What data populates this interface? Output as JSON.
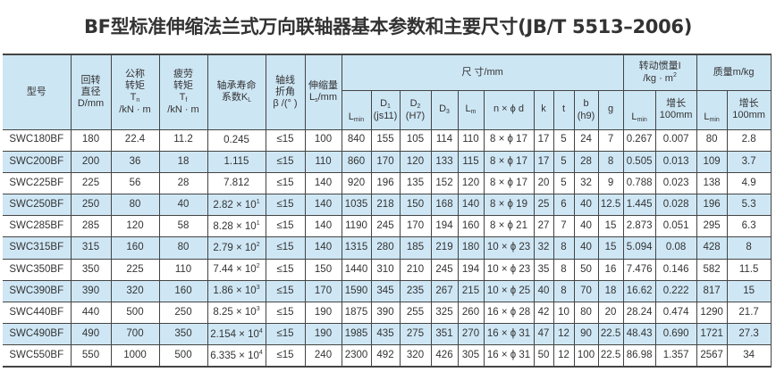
{
  "title": "BF型标准伸缩法兰式万向联轴器基本参数和主要尺寸(JB/T 5513–2006)",
  "header": {
    "model": "型号",
    "d": [
      "回转",
      "直径",
      "D/mm"
    ],
    "tn": [
      "公称",
      "转矩",
      "T",
      "n",
      "/kN · m"
    ],
    "tf": [
      "疲劳",
      "转矩",
      "T",
      "f",
      "/kN · m"
    ],
    "kl": [
      "轴承寿命",
      "系数K",
      "L"
    ],
    "beta": [
      "轴线",
      "折角",
      "β /(°  )"
    ],
    "ls": [
      "伸缩量",
      "L",
      "s",
      "/mm"
    ],
    "dims": "尺  寸/mm",
    "dim_cols": [
      [
        "L",
        "min",
        ""
      ],
      [
        "D",
        "1",
        "(js11)"
      ],
      [
        "D",
        "2",
        "(H7)"
      ],
      [
        "D",
        "3",
        ""
      ],
      [
        "L",
        "m",
        ""
      ],
      [
        "n × ϕ d",
        "",
        ""
      ],
      [
        "k",
        "",
        ""
      ],
      [
        "t",
        "",
        ""
      ],
      [
        "b",
        "",
        "(h9)"
      ],
      [
        "g",
        "",
        ""
      ]
    ],
    "inertia": [
      "转动惯量I",
      "/kg · m",
      "2"
    ],
    "inertia_cols": [
      [
        "L",
        "min"
      ],
      [
        "增长",
        "100mm"
      ]
    ],
    "mass": "质量m/kg",
    "mass_cols": [
      [
        "L",
        "min"
      ],
      [
        "增长",
        "100mm"
      ]
    ]
  },
  "rows": [
    {
      "model": "SWC180BF",
      "d": "180",
      "tn": "22.4",
      "tf": "11.2",
      "kl": "0.245",
      "kl_exp": "",
      "beta": "≤15",
      "ls": "100",
      "lmin": "840",
      "d1": "155",
      "d2": "105",
      "d3": "114",
      "lm": "110",
      "nd": "8 × ϕ 17",
      "k": "17",
      "t": "5",
      "b": "24",
      "g": "7",
      "i_lmin": "0.267",
      "i_100": "0.007",
      "m_lmin": "80",
      "m_100": "2.8"
    },
    {
      "model": "SWC200BF",
      "d": "200",
      "tn": "36",
      "tf": "18",
      "kl": "1.115",
      "kl_exp": "",
      "beta": "≤15",
      "ls": "110",
      "lmin": "860",
      "d1": "170",
      "d2": "120",
      "d3": "133",
      "lm": "115",
      "nd": "8 × ϕ 17",
      "k": "17",
      "t": "5",
      "b": "28",
      "g": "8",
      "i_lmin": "0.505",
      "i_100": "0.013",
      "m_lmin": "109",
      "m_100": "3.7"
    },
    {
      "model": "SWC225BF",
      "d": "225",
      "tn": "56",
      "tf": "28",
      "kl": "7.812",
      "kl_exp": "",
      "beta": "≤15",
      "ls": "140",
      "lmin": "920",
      "d1": "196",
      "d2": "135",
      "d3": "152",
      "lm": "120",
      "nd": "8 × ϕ 17",
      "k": "20",
      "t": "5",
      "b": "32",
      "g": "9",
      "i_lmin": "0.788",
      "i_100": "0.023",
      "m_lmin": "138",
      "m_100": "4.9"
    },
    {
      "model": "SWC250BF",
      "d": "250",
      "tn": "80",
      "tf": "40",
      "kl": "2.82 × 10",
      "kl_exp": "1",
      "beta": "≤15",
      "ls": "140",
      "lmin": "1035",
      "d1": "218",
      "d2": "150",
      "d3": "168",
      "lm": "140",
      "nd": "8 × ϕ 19",
      "k": "25",
      "t": "6",
      "b": "40",
      "g": "12.5",
      "i_lmin": "1.445",
      "i_100": "0.028",
      "m_lmin": "196",
      "m_100": "5.3"
    },
    {
      "model": "SWC285BF",
      "d": "285",
      "tn": "120",
      "tf": "58",
      "kl": "8.28 × 10",
      "kl_exp": "1",
      "beta": "≤15",
      "ls": "140",
      "lmin": "1190",
      "d1": "245",
      "d2": "170",
      "d3": "194",
      "lm": "160",
      "nd": "8 × ϕ 21",
      "k": "27",
      "t": "7",
      "b": "40",
      "g": "15",
      "i_lmin": "2.873",
      "i_100": "0.051",
      "m_lmin": "295",
      "m_100": "6.3"
    },
    {
      "model": "SWC315BF",
      "d": "315",
      "tn": "160",
      "tf": "80",
      "kl": "2.79 × 10",
      "kl_exp": "2",
      "beta": "≤15",
      "ls": "140",
      "lmin": "1315",
      "d1": "280",
      "d2": "185",
      "d3": "219",
      "lm": "180",
      "nd": "10 × ϕ 23",
      "k": "32",
      "t": "8",
      "b": "40",
      "g": "15",
      "i_lmin": "5.094",
      "i_100": "0.08",
      "m_lmin": "428",
      "m_100": "8"
    },
    {
      "model": "SWC350BF",
      "d": "350",
      "tn": "225",
      "tf": "110",
      "kl": "7.44 × 10",
      "kl_exp": "2",
      "beta": "≤15",
      "ls": "150",
      "lmin": "1440",
      "d1": "310",
      "d2": "210",
      "d3": "245",
      "lm": "194",
      "nd": "10 × ϕ 23",
      "k": "35",
      "t": "8",
      "b": "50",
      "g": "16",
      "i_lmin": "7.476",
      "i_100": "0.146",
      "m_lmin": "582",
      "m_100": "11.5"
    },
    {
      "model": "SWC390BF",
      "d": "390",
      "tn": "320",
      "tf": "160",
      "kl": "1.86 × 10",
      "kl_exp": "3",
      "beta": "≤15",
      "ls": "170",
      "lmin": "1590",
      "d1": "345",
      "d2": "235",
      "d3": "267",
      "lm": "215",
      "nd": "10 × ϕ 25",
      "k": "40",
      "t": "8",
      "b": "70",
      "g": "18",
      "i_lmin": "16.62",
      "i_100": "0.222",
      "m_lmin": "817",
      "m_100": "15"
    },
    {
      "model": "SWC440BF",
      "d": "440",
      "tn": "500",
      "tf": "250",
      "kl": "8.25 × 10",
      "kl_exp": "3",
      "beta": "≤15",
      "ls": "190",
      "lmin": "1875",
      "d1": "390",
      "d2": "255",
      "d3": "325",
      "lm": "260",
      "nd": "16 × ϕ 28",
      "k": "42",
      "t": "10",
      "b": "80",
      "g": "20",
      "i_lmin": "28.24",
      "i_100": "0.474",
      "m_lmin": "1290",
      "m_100": "21.7"
    },
    {
      "model": "SWC490BF",
      "d": "490",
      "tn": "700",
      "tf": "350",
      "kl": "2.154 × 10",
      "kl_exp": "4",
      "beta": "≤15",
      "ls": "190",
      "lmin": "1985",
      "d1": "435",
      "d2": "275",
      "d3": "351",
      "lm": "270",
      "nd": "16 × ϕ 31",
      "k": "47",
      "t": "12",
      "b": "90",
      "g": "22.5",
      "i_lmin": "48.43",
      "i_100": "0.690",
      "m_lmin": "1721",
      "m_100": "27.3"
    },
    {
      "model": "SWC550BF",
      "d": "550",
      "tn": "1000",
      "tf": "500",
      "kl": "6.335 × 10",
      "kl_exp": "4",
      "beta": "≤15",
      "ls": "240",
      "lmin": "2300",
      "d1": "492",
      "d2": "320",
      "d3": "426",
      "lm": "305",
      "nd": "16 × ϕ 31",
      "k": "50",
      "t": "12",
      "b": "100",
      "g": "22.5",
      "i_lmin": "86.98",
      "i_100": "1.357",
      "m_lmin": "2567",
      "m_100": "34"
    }
  ]
}
